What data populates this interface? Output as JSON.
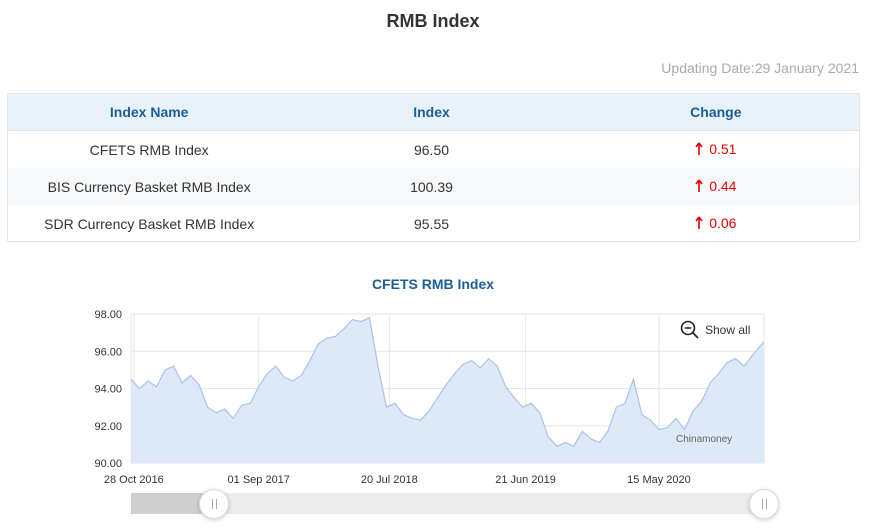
{
  "title": "RMB Index",
  "updating_date": "Updating Date:29 January 2021",
  "table": {
    "headers": [
      "Index Name",
      "Index",
      "Change"
    ],
    "rows": [
      {
        "name": "CFETS RMB Index",
        "index": "96.50",
        "change": "0.51",
        "direction": "up"
      },
      {
        "name": "BIS Currency Basket RMB Index",
        "index": "100.39",
        "change": "0.44",
        "direction": "up"
      },
      {
        "name": "SDR Currency Basket RMB Index",
        "index": "95.55",
        "change": "0.06",
        "direction": "up"
      }
    ]
  },
  "controls": {
    "show_all_label": "Show all",
    "zoom_out_icon": "zoom-out-icon",
    "slider_range": [
      0.13,
      1.0
    ]
  },
  "watermark": "Chinamoney",
  "colors": {
    "header_text": "#1d5d96",
    "header_bg": "#e8f2fb",
    "up": "#e60000",
    "line": "#a9c3e8",
    "area": "#dde8f8"
  },
  "chart_data": {
    "type": "area",
    "title": "CFETS RMB Index",
    "xlabel": "",
    "ylabel": "",
    "ylim": [
      90,
      98
    ],
    "yticks": [
      "98.00",
      "96.00",
      "94.00",
      "92.00",
      "90.00"
    ],
    "xticks": [
      "28 Oct 2016",
      "01 Sep 2017",
      "20 Jul 2018",
      "21 Jun 2019",
      "15 May 2020"
    ],
    "grid": true,
    "legend": "none",
    "series": [
      {
        "x": [
          "2016-10-21",
          "2016-11-11",
          "2016-12-02",
          "2016-12-23",
          "2017-01-13",
          "2017-02-03",
          "2017-02-24",
          "2017-03-17",
          "2017-04-07",
          "2017-04-28",
          "2017-05-19",
          "2017-06-09",
          "2017-06-30",
          "2017-07-21",
          "2017-08-11",
          "2017-09-01",
          "2017-09-22",
          "2017-10-13",
          "2017-11-03",
          "2017-11-24",
          "2017-12-15",
          "2018-01-05",
          "2018-01-26",
          "2018-02-16",
          "2018-03-09",
          "2018-03-30",
          "2018-04-20",
          "2018-05-11",
          "2018-06-01",
          "2018-06-22",
          "2018-07-13",
          "2018-08-03",
          "2018-08-24",
          "2018-09-14",
          "2018-10-05",
          "2018-10-26",
          "2018-11-16",
          "2018-12-07",
          "2018-12-28",
          "2019-01-18",
          "2019-02-08",
          "2019-03-01",
          "2019-03-22",
          "2019-04-12",
          "2019-05-03",
          "2019-05-24",
          "2019-06-14",
          "2019-07-05",
          "2019-07-26",
          "2019-08-16",
          "2019-09-06",
          "2019-09-27",
          "2019-10-18",
          "2019-11-08",
          "2019-11-29",
          "2019-12-20",
          "2020-01-10",
          "2020-01-31",
          "2020-02-21",
          "2020-03-13",
          "2020-04-03",
          "2020-04-24",
          "2020-05-15",
          "2020-06-05",
          "2020-06-26",
          "2020-07-17",
          "2020-08-07",
          "2020-08-28",
          "2020-09-18",
          "2020-10-09",
          "2020-10-30",
          "2020-11-20",
          "2020-12-11",
          "2021-01-01",
          "2021-01-29"
        ],
        "values": [
          94.5,
          94.0,
          94.4,
          94.1,
          95.0,
          95.2,
          94.3,
          94.7,
          94.2,
          93.0,
          92.7,
          92.9,
          92.4,
          93.1,
          93.2,
          94.1,
          94.8,
          95.2,
          94.6,
          94.4,
          94.7,
          95.5,
          96.4,
          96.7,
          96.8,
          97.2,
          97.7,
          97.6,
          97.8,
          95.2,
          93.0,
          93.2,
          92.6,
          92.4,
          92.3,
          92.8,
          93.5,
          94.2,
          94.8,
          95.3,
          95.5,
          95.1,
          95.6,
          95.2,
          94.1,
          93.5,
          93.0,
          93.2,
          92.7,
          91.4,
          90.9,
          91.1,
          90.9,
          91.7,
          91.3,
          91.1,
          91.7,
          93.0,
          93.2,
          94.5,
          92.6,
          92.3,
          91.8,
          91.9,
          92.4,
          91.8,
          92.8,
          93.3,
          94.3,
          94.8,
          95.4,
          95.6,
          95.2,
          95.8,
          96.5
        ]
      }
    ]
  }
}
